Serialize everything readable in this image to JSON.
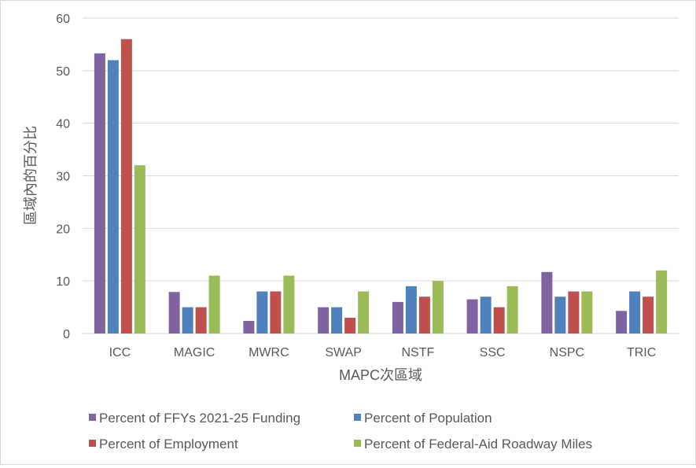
{
  "chart_data": {
    "type": "bar",
    "title": "",
    "xlabel": "MAPC次區域",
    "ylabel": "區域內的百分比",
    "ylim": [
      0,
      60
    ],
    "yticks": [
      0,
      10,
      20,
      30,
      40,
      50,
      60
    ],
    "grid": true,
    "legend_position": "bottom",
    "categories": [
      "ICC",
      "MAGIC",
      "MWRC",
      "SWAP",
      "NSTF",
      "SSC",
      "NSPC",
      "TRIC"
    ],
    "series": [
      {
        "name": "Percent of FFYs 2021-25 Funding",
        "color": "#8064a2",
        "values": [
          53.3,
          7.9,
          2.4,
          5,
          6,
          6.5,
          11.7,
          4.3
        ]
      },
      {
        "name": "Percent of Population",
        "color": "#4f81bd",
        "values": [
          52,
          5,
          8,
          5,
          9,
          7,
          7,
          8
        ]
      },
      {
        "name": "Percent of Employment",
        "color": "#c0504d",
        "values": [
          56,
          5,
          8,
          3,
          7,
          5,
          8,
          7
        ]
      },
      {
        "name": "Percent of Federal-Aid Roadway Miles",
        "color": "#9bbb59",
        "values": [
          32,
          11,
          11,
          8,
          10,
          9,
          8,
          12
        ]
      }
    ]
  }
}
